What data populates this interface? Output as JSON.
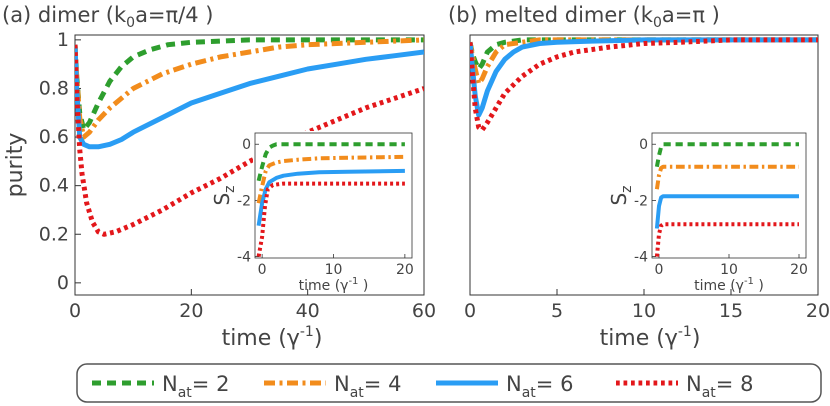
{
  "colors": {
    "green": "#2e9e2e",
    "orange": "#f28c1c",
    "blue": "#2a9df4",
    "red": "#e3171b",
    "axis": "#333333"
  },
  "legend": {
    "items": [
      {
        "name": "N",
        "sub": "at",
        "suffix": "= 2",
        "color": "green",
        "dash": "dash"
      },
      {
        "name": "N",
        "sub": "at",
        "suffix": "= 4",
        "color": "orange",
        "dash": "dashdot"
      },
      {
        "name": "N",
        "sub": "at",
        "suffix": "= 6",
        "color": "blue",
        "dash": "solid"
      },
      {
        "name": "N",
        "sub": "at",
        "suffix": "= 8",
        "color": "red",
        "dash": "dot"
      }
    ]
  },
  "chart_data": [
    {
      "id": "a",
      "type": "line",
      "title_main": "(a) dimer (k",
      "title_sub": "0",
      "title_rest": "a=π/4 )",
      "xlabel": "time (γ",
      "xlabel_sup": "-1",
      "xlabel_end": ")",
      "ylabel": "purity",
      "xlim": [
        0,
        60
      ],
      "ylim": [
        -0.05,
        1.02
      ],
      "xticks": [
        0,
        20,
        40,
        60
      ],
      "yticks": [
        0,
        0.2,
        0.4,
        0.6,
        0.8,
        1
      ],
      "ytick_labels": [
        "0",
        "0.2",
        "0.4",
        "0.6",
        "0.8",
        "1"
      ],
      "series": [
        {
          "name": "Nat=2",
          "color": "green",
          "dash": "dash",
          "x": [
            0,
            0.3,
            0.8,
            1.5,
            2.5,
            4,
            6,
            8,
            10,
            13,
            16,
            20,
            25,
            30,
            40,
            50,
            60
          ],
          "y": [
            0.98,
            0.85,
            0.7,
            0.63,
            0.66,
            0.74,
            0.83,
            0.89,
            0.93,
            0.96,
            0.98,
            0.99,
            0.995,
            1,
            1,
            1,
            1
          ]
        },
        {
          "name": "Nat=4",
          "color": "orange",
          "dash": "dashdot",
          "x": [
            0,
            0.3,
            0.8,
            1.5,
            2.5,
            4,
            6,
            10,
            15,
            20,
            25,
            30,
            35,
            40,
            45,
            50,
            55,
            60
          ],
          "y": [
            0.98,
            0.85,
            0.68,
            0.6,
            0.62,
            0.67,
            0.72,
            0.8,
            0.86,
            0.9,
            0.93,
            0.95,
            0.97,
            0.98,
            0.985,
            0.99,
            0.995,
            1
          ]
        },
        {
          "name": "Nat=6",
          "color": "blue",
          "dash": "solid",
          "x": [
            0,
            0.3,
            0.8,
            1.5,
            2.5,
            4,
            6,
            8,
            10,
            15,
            20,
            25,
            30,
            35,
            40,
            45,
            50,
            55,
            60
          ],
          "y": [
            0.98,
            0.8,
            0.6,
            0.57,
            0.56,
            0.56,
            0.57,
            0.59,
            0.62,
            0.68,
            0.74,
            0.78,
            0.82,
            0.85,
            0.88,
            0.9,
            0.92,
            0.935,
            0.95
          ]
        },
        {
          "name": "Nat=8",
          "color": "red",
          "dash": "dot",
          "x": [
            0,
            0.3,
            0.8,
            1.2,
            2,
            3,
            4,
            5,
            7,
            10,
            15,
            20,
            25,
            30,
            35,
            40,
            45,
            50,
            55,
            60
          ],
          "y": [
            0.98,
            0.78,
            0.55,
            0.45,
            0.33,
            0.25,
            0.21,
            0.2,
            0.21,
            0.24,
            0.3,
            0.37,
            0.43,
            0.5,
            0.56,
            0.62,
            0.67,
            0.72,
            0.76,
            0.8
          ]
        }
      ],
      "inset": {
        "xlabel": "time (γ",
        "xlabel_sup": "-1",
        "xlabel_end": " )",
        "ylabel": "S",
        "ylabel_sub": "z",
        "xlim": [
          -1,
          21
        ],
        "ylim": [
          -4.05,
          0.4
        ],
        "xticks": [
          0,
          10,
          20
        ],
        "yticks": [
          0,
          -2,
          -4
        ],
        "ytick_labels": [
          "0",
          "-2",
          "-4"
        ],
        "series": [
          {
            "color": "green",
            "dash": "dash",
            "x": [
              -0.5,
              0,
              0.5,
              1,
              1.5,
              2,
              3,
              5,
              10,
              20
            ],
            "y": [
              -1.3,
              -0.8,
              -0.35,
              -0.12,
              -0.05,
              0,
              0,
              0,
              0,
              0
            ]
          },
          {
            "color": "orange",
            "dash": "dashdot",
            "x": [
              -0.5,
              0,
              0.5,
              1,
              2,
              3,
              5,
              8,
              12,
              20
            ],
            "y": [
              -2.1,
              -1.5,
              -0.95,
              -0.75,
              -0.65,
              -0.6,
              -0.55,
              -0.5,
              -0.48,
              -0.45
            ]
          },
          {
            "color": "blue",
            "dash": "solid",
            "x": [
              -0.5,
              0,
              0.5,
              1,
              2,
              3,
              5,
              8,
              12,
              20
            ],
            "y": [
              -2.9,
              -2.1,
              -1.6,
              -1.35,
              -1.2,
              -1.12,
              -1.05,
              -1.0,
              -0.98,
              -0.95
            ]
          },
          {
            "color": "red",
            "dash": "dot",
            "x": [
              -0.5,
              0,
              0.4,
              0.8,
              1.5,
              3,
              5,
              10,
              20
            ],
            "y": [
              -4,
              -3.3,
              -2.2,
              -1.6,
              -1.45,
              -1.4,
              -1.4,
              -1.4,
              -1.4
            ]
          }
        ]
      }
    },
    {
      "id": "b",
      "type": "line",
      "title_main": "(b) melted dimer (k",
      "title_sub": "0",
      "title_rest": "a=π )",
      "xlabel": "time (γ",
      "xlabel_sup": "-1",
      "xlabel_end": ")",
      "xlim": [
        0,
        20
      ],
      "ylim": [
        -0.05,
        1.02
      ],
      "xticks": [
        0,
        5,
        10,
        15,
        20
      ],
      "series": [
        {
          "name": "Nat=2",
          "color": "green",
          "dash": "dash",
          "x": [
            0,
            0.15,
            0.3,
            0.5,
            0.7,
            1,
            1.5,
            2,
            3,
            5,
            10,
            20
          ],
          "y": [
            0.99,
            0.94,
            0.91,
            0.88,
            0.9,
            0.95,
            0.98,
            0.99,
            1,
            1,
            1,
            1
          ]
        },
        {
          "name": "Nat=4",
          "color": "orange",
          "dash": "dashdot",
          "x": [
            0,
            0.15,
            0.3,
            0.5,
            0.7,
            1,
            1.5,
            2,
            3,
            4,
            6,
            10,
            20
          ],
          "y": [
            0.99,
            0.93,
            0.88,
            0.82,
            0.84,
            0.89,
            0.95,
            0.98,
            0.99,
            1,
            1,
            1,
            1
          ]
        },
        {
          "name": "Nat=6",
          "color": "blue",
          "dash": "solid",
          "x": [
            0,
            0.15,
            0.3,
            0.5,
            0.7,
            1,
            1.5,
            2,
            2.5,
            3,
            4,
            5,
            7,
            10,
            20
          ],
          "y": [
            0.99,
            0.88,
            0.77,
            0.69,
            0.72,
            0.79,
            0.87,
            0.92,
            0.95,
            0.97,
            0.985,
            0.99,
            0.995,
            1,
            1
          ]
        },
        {
          "name": "Nat=8",
          "color": "red",
          "dash": "dot",
          "x": [
            0,
            0.15,
            0.3,
            0.5,
            0.7,
            1,
            1.5,
            2,
            3,
            4,
            5,
            6,
            8,
            10,
            12,
            15,
            20
          ],
          "y": [
            0.99,
            0.85,
            0.72,
            0.64,
            0.63,
            0.66,
            0.72,
            0.78,
            0.85,
            0.9,
            0.93,
            0.95,
            0.97,
            0.985,
            0.99,
            1,
            1
          ]
        }
      ],
      "inset": {
        "xlabel": "time (γ",
        "xlabel_sup": "-1",
        "xlabel_end": " )",
        "ylabel": "S",
        "ylabel_sub": "z",
        "xlim": [
          -1,
          21
        ],
        "ylim": [
          -4.05,
          0.4
        ],
        "xticks": [
          0,
          10,
          20
        ],
        "yticks": [
          0,
          -2,
          -4
        ],
        "ytick_labels": [
          "0",
          "-2",
          "-4"
        ],
        "series": [
          {
            "color": "green",
            "dash": "dash",
            "x": [
              -0.3,
              0,
              0.3,
              0.6,
              1,
              2,
              5,
              20
            ],
            "y": [
              -0.8,
              -0.4,
              -0.1,
              0,
              0,
              0,
              0,
              0
            ]
          },
          {
            "color": "orange",
            "dash": "dashdot",
            "x": [
              -0.3,
              0,
              0.3,
              0.6,
              1,
              2,
              5,
              20
            ],
            "y": [
              -1.6,
              -1.1,
              -0.85,
              -0.8,
              -0.8,
              -0.8,
              -0.8,
              -0.8
            ]
          },
          {
            "color": "blue",
            "dash": "solid",
            "x": [
              -0.3,
              0,
              0.3,
              0.6,
              1,
              2,
              5,
              20
            ],
            "y": [
              -3.0,
              -2.2,
              -1.9,
              -1.85,
              -1.85,
              -1.85,
              -1.85,
              -1.85
            ]
          },
          {
            "color": "red",
            "dash": "dot",
            "x": [
              -0.3,
              0,
              0.3,
              0.6,
              1,
              2,
              5,
              20
            ],
            "y": [
              -4,
              -3.2,
              -2.9,
              -2.85,
              -2.85,
              -2.85,
              -2.85,
              -2.85
            ]
          }
        ]
      }
    }
  ]
}
